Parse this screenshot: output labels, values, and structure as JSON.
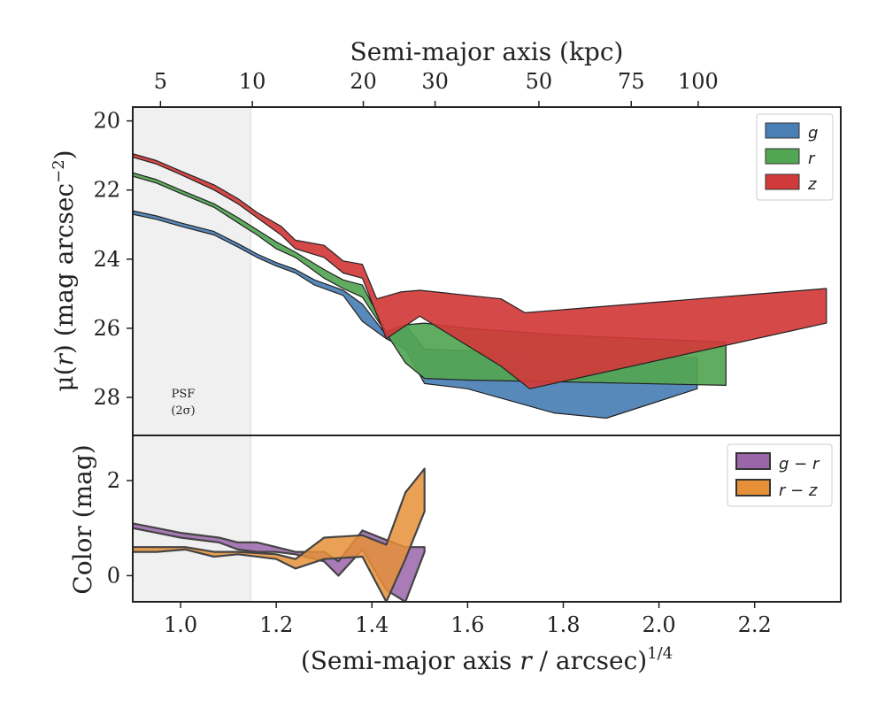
{
  "figure": {
    "top_xlabel": "Semi-major axis (kpc)",
    "psf_label_1": "PSF",
    "psf_label_2": "(2σ)"
  },
  "chart_data": [
    {
      "type": "area",
      "panel": "surface-brightness",
      "xlabel": "(Semi-major axis r / arcsec)^1/4",
      "ylabel": "μ(r) (mag arcsec⁻²)",
      "xlim": [
        0.9,
        2.38
      ],
      "ylim": [
        29.1,
        19.6
      ],
      "y_inverted": true,
      "yticks": [
        "20",
        "22",
        "24",
        "26",
        "28"
      ],
      "psf_region": [
        0.9,
        1.147
      ],
      "top_axis": {
        "label": "Semi-major axis (kpc)",
        "ticks": [
          {
            "label": "5",
            "x": 0.958
          },
          {
            "label": "10",
            "x": 1.15
          },
          {
            "label": "20",
            "x": 1.382
          },
          {
            "label": "30",
            "x": 1.532
          },
          {
            "label": "50",
            "x": 1.749
          },
          {
            "label": "75",
            "x": 1.942
          },
          {
            "label": "100",
            "x": 2.082
          }
        ]
      },
      "legend_position": "top-right",
      "series": [
        {
          "name": "g",
          "color": "#4a7fb5",
          "upper": [
            [
              0.9,
              22.6
            ],
            [
              0.95,
              22.75
            ],
            [
              1.0,
              22.95
            ],
            [
              1.07,
              23.2
            ],
            [
              1.12,
              23.55
            ],
            [
              1.16,
              23.85
            ],
            [
              1.2,
              24.1
            ],
            [
              1.24,
              24.3
            ],
            [
              1.28,
              24.6
            ],
            [
              1.34,
              24.9
            ],
            [
              1.38,
              25.3
            ],
            [
              1.43,
              26.2
            ],
            [
              1.47,
              25.9
            ],
            [
              1.51,
              26.6
            ],
            [
              1.6,
              26.65
            ],
            [
              1.78,
              26.75
            ],
            [
              1.9,
              26.85
            ],
            [
              2.08,
              26.85
            ]
          ],
          "lower": [
            [
              0.9,
              22.7
            ],
            [
              0.95,
              22.85
            ],
            [
              1.0,
              23.05
            ],
            [
              1.07,
              23.3
            ],
            [
              1.12,
              23.65
            ],
            [
              1.16,
              23.95
            ],
            [
              1.2,
              24.2
            ],
            [
              1.24,
              24.4
            ],
            [
              1.28,
              24.75
            ],
            [
              1.34,
              25.05
            ],
            [
              1.38,
              25.8
            ],
            [
              1.43,
              26.3
            ],
            [
              1.47,
              26.6
            ],
            [
              1.51,
              27.6
            ],
            [
              1.6,
              27.75
            ],
            [
              1.78,
              28.45
            ],
            [
              1.89,
              28.6
            ],
            [
              2.08,
              27.75
            ]
          ]
        },
        {
          "name": "r",
          "color": "#52a552",
          "upper": [
            [
              0.9,
              21.5
            ],
            [
              0.95,
              21.7
            ],
            [
              1.0,
              22.0
            ],
            [
              1.07,
              22.4
            ],
            [
              1.12,
              22.8
            ],
            [
              1.16,
              23.15
            ],
            [
              1.2,
              23.5
            ],
            [
              1.24,
              23.8
            ],
            [
              1.3,
              24.3
            ],
            [
              1.34,
              24.6
            ],
            [
              1.38,
              24.75
            ],
            [
              1.43,
              26.1
            ],
            [
              1.47,
              25.9
            ],
            [
              1.51,
              25.85
            ],
            [
              1.6,
              26.0
            ],
            [
              1.8,
              26.2
            ],
            [
              2.14,
              26.4
            ]
          ],
          "lower": [
            [
              0.9,
              21.6
            ],
            [
              0.95,
              21.8
            ],
            [
              1.0,
              22.1
            ],
            [
              1.07,
              22.5
            ],
            [
              1.12,
              22.95
            ],
            [
              1.16,
              23.3
            ],
            [
              1.2,
              23.7
            ],
            [
              1.24,
              23.95
            ],
            [
              1.3,
              24.55
            ],
            [
              1.34,
              24.85
            ],
            [
              1.38,
              25.1
            ],
            [
              1.43,
              26.15
            ],
            [
              1.47,
              27.0
            ],
            [
              1.51,
              27.45
            ],
            [
              1.6,
              27.5
            ],
            [
              1.8,
              27.55
            ],
            [
              2.14,
              27.65
            ]
          ]
        },
        {
          "name": "z",
          "color": "#d13a3a",
          "upper": [
            [
              0.9,
              20.95
            ],
            [
              0.95,
              21.15
            ],
            [
              1.0,
              21.45
            ],
            [
              1.07,
              21.85
            ],
            [
              1.12,
              22.25
            ],
            [
              1.16,
              22.65
            ],
            [
              1.21,
              23.05
            ],
            [
              1.24,
              23.45
            ],
            [
              1.3,
              23.6
            ],
            [
              1.34,
              24.05
            ],
            [
              1.38,
              24.15
            ],
            [
              1.41,
              25.15
            ],
            [
              1.46,
              24.95
            ],
            [
              1.5,
              24.9
            ],
            [
              1.67,
              25.15
            ],
            [
              1.72,
              25.55
            ],
            [
              2.35,
              24.85
            ]
          ],
          "lower": [
            [
              0.9,
              21.05
            ],
            [
              0.95,
              21.25
            ],
            [
              1.0,
              21.55
            ],
            [
              1.07,
              22.0
            ],
            [
              1.12,
              22.4
            ],
            [
              1.16,
              22.8
            ],
            [
              1.21,
              23.3
            ],
            [
              1.24,
              23.7
            ],
            [
              1.3,
              23.95
            ],
            [
              1.34,
              24.4
            ],
            [
              1.38,
              24.55
            ],
            [
              1.41,
              25.6
            ],
            [
              1.43,
              26.3
            ],
            [
              1.5,
              25.65
            ],
            [
              1.67,
              27.1
            ],
            [
              1.73,
              27.75
            ],
            [
              2.35,
              25.85
            ]
          ]
        }
      ]
    },
    {
      "type": "area",
      "panel": "color",
      "xlabel": "(Semi-major axis r / arcsec)^1/4",
      "ylabel": "Color (mag)",
      "xlim": [
        0.9,
        2.38
      ],
      "ylim": [
        -0.55,
        2.95
      ],
      "yticks": [
        "0",
        "2"
      ],
      "xticks": [
        "1.0",
        "1.2",
        "1.4",
        "1.6",
        "1.8",
        "2.0",
        "2.2"
      ],
      "legend_position": "top-right",
      "series": [
        {
          "name": "g − r",
          "color": "#9b65aa",
          "upper": [
            [
              0.9,
              1.1
            ],
            [
              0.95,
              1.0
            ],
            [
              1.0,
              0.9
            ],
            [
              1.08,
              0.8
            ],
            [
              1.12,
              0.7
            ],
            [
              1.16,
              0.7
            ],
            [
              1.2,
              0.6
            ],
            [
              1.24,
              0.5
            ],
            [
              1.3,
              0.5
            ],
            [
              1.33,
              0.3
            ],
            [
              1.38,
              0.95
            ],
            [
              1.43,
              0.75
            ],
            [
              1.47,
              0.6
            ],
            [
              1.51,
              0.6
            ]
          ],
          "lower": [
            [
              0.9,
              1.0
            ],
            [
              0.95,
              0.9
            ],
            [
              1.0,
              0.8
            ],
            [
              1.08,
              0.7
            ],
            [
              1.12,
              0.55
            ],
            [
              1.16,
              0.5
            ],
            [
              1.2,
              0.5
            ],
            [
              1.24,
              0.45
            ],
            [
              1.3,
              0.3
            ],
            [
              1.33,
              0.0
            ],
            [
              1.38,
              0.55
            ],
            [
              1.43,
              -0.3
            ],
            [
              1.47,
              -0.55
            ],
            [
              1.51,
              0.5
            ]
          ]
        },
        {
          "name": "r − z",
          "color": "#e69138",
          "upper": [
            [
              0.9,
              0.6
            ],
            [
              0.95,
              0.6
            ],
            [
              1.01,
              0.6
            ],
            [
              1.07,
              0.5
            ],
            [
              1.12,
              0.5
            ],
            [
              1.2,
              0.45
            ],
            [
              1.24,
              0.35
            ],
            [
              1.3,
              0.8
            ],
            [
              1.38,
              0.85
            ],
            [
              1.43,
              0.65
            ],
            [
              1.47,
              1.75
            ],
            [
              1.51,
              2.25
            ]
          ],
          "lower": [
            [
              0.9,
              0.5
            ],
            [
              0.95,
              0.5
            ],
            [
              1.01,
              0.55
            ],
            [
              1.07,
              0.4
            ],
            [
              1.12,
              0.45
            ],
            [
              1.2,
              0.35
            ],
            [
              1.24,
              0.15
            ],
            [
              1.3,
              0.35
            ],
            [
              1.38,
              0.4
            ],
            [
              1.43,
              -0.55
            ],
            [
              1.47,
              0.35
            ],
            [
              1.51,
              1.35
            ]
          ]
        }
      ]
    }
  ]
}
